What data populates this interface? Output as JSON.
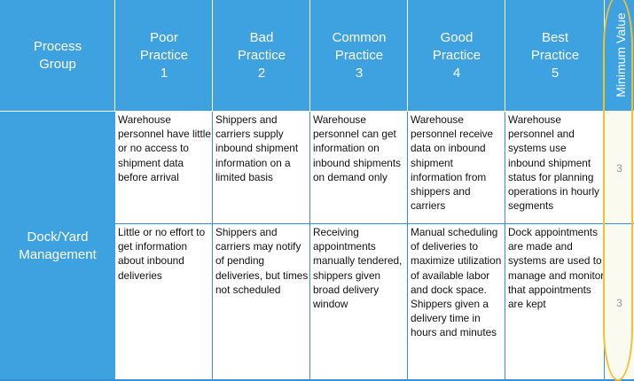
{
  "header": {
    "process_group": "Process\nGroup",
    "practices": [
      {
        "name": "Poor\nPractice",
        "num": "1"
      },
      {
        "name": "Bad\nPractice",
        "num": "2"
      },
      {
        "name": "Common\nPractice",
        "num": "3"
      },
      {
        "name": "Good\nPractice",
        "num": "4"
      },
      {
        "name": "Best\nPractice",
        "num": "5"
      }
    ],
    "minimum_value": "Minimum Value"
  },
  "group": "Dock/Yard\nManagement",
  "rows": [
    {
      "cells": [
        "Warehouse personnel have little or no access to shipment data before arrival",
        "Shippers and carriers supply inbound shipment information on a limited basis",
        "Warehouse personnel can get information on inbound shipments on demand only",
        "Warehouse personnel receive data on inbound shipment information from shippers and carriers",
        "Warehouse personnel and systems use inbound shipment status for planning operations in hourly segments"
      ],
      "min_value": "3"
    },
    {
      "cells": [
        "Little or no effort to get information about inbound deliveries",
        "Shippers and carriers may notify of pending deliveries, but times not scheduled",
        "Receiving appointments manually tendered, shippers given broad delivery window",
        "Manual scheduling of deliveries to maximize utilization of available labor and dock space. Shippers given a delivery time in hours and minutes",
        "Dock appointments are made and systems are used to manage and monitor that appointments are kept"
      ],
      "min_value": "3"
    }
  ],
  "colors": {
    "header_blue": "#3fa2e0",
    "highlight_oval": "#f2c12e",
    "min_value_bg": "#fbfaf1"
  }
}
